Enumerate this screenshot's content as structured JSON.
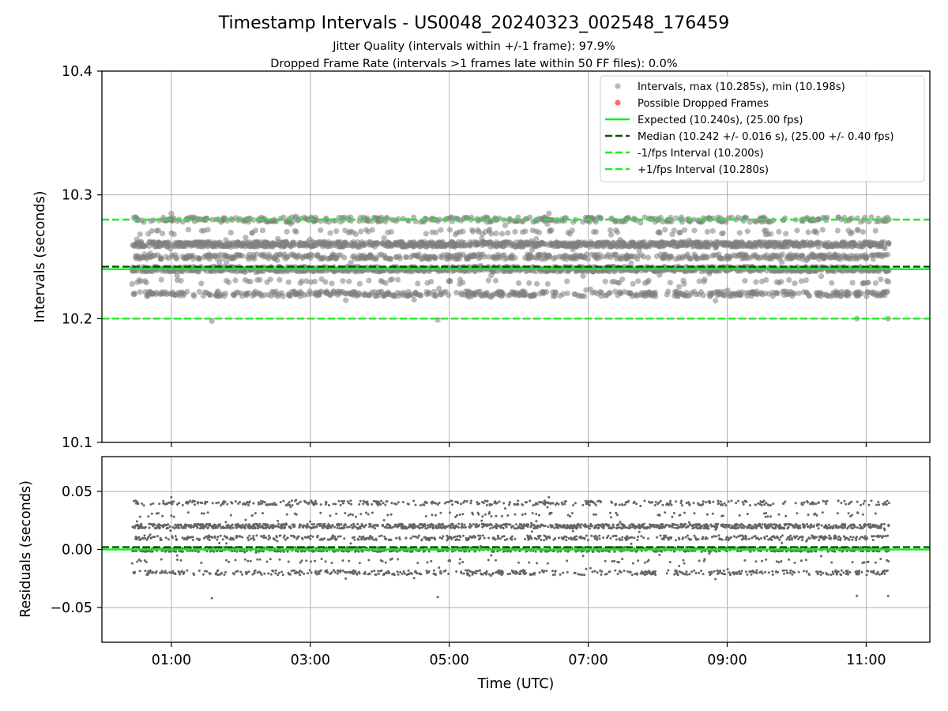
{
  "figure": {
    "title": "Timestamp Intervals - US0048_20240323_002548_176459",
    "subtitle_1": "Jitter Quality (intervals within +/-1 frame): 97.9%",
    "subtitle_2": "Dropped Frame Rate (intervals >1 frames late within 50 FF files): 0.0%",
    "xlabel": "Time (UTC)"
  },
  "colors": {
    "points": "#808080",
    "dropped": "#ff6a6a",
    "expected": "#11ee22",
    "median": "#005500",
    "fps_interval": "#22ee22",
    "grid": "#b0b0b0"
  },
  "chart_data": [
    {
      "type": "scatter",
      "name": "intervals",
      "ylabel": "Intervals (seconds)",
      "xlim": [
        "00:00",
        "11:55"
      ],
      "ylim": [
        10.1,
        10.4
      ],
      "yticks": [
        "10.1",
        "10.2",
        "10.3",
        "10.4"
      ],
      "grid": true,
      "legend_position": "upper right",
      "legend": [
        "Intervals, max (10.285s), min (10.198s)",
        "Possible Dropped Frames",
        "Expected (10.240s), (25.00 fps)",
        "Median (10.242 +/- 0.016 s), (25.00 +/- 0.40 fps)",
        "-1/fps Interval (10.200s)",
        "+1/fps Interval (10.280s)"
      ],
      "points_time_range": [
        "00:26",
        "11:20"
      ],
      "point_count_approx": 3900,
      "interval_max": 10.285,
      "interval_min": 10.198,
      "value_levels": [
        {
          "value": 10.22,
          "share": 0.13
        },
        {
          "value": 10.24,
          "share": 0.27
        },
        {
          "value": 10.25,
          "share": 0.14
        },
        {
          "value": 10.26,
          "share": 0.3
        },
        {
          "value": 10.28,
          "share": 0.11
        },
        {
          "value": 10.23,
          "share": 0.025
        },
        {
          "value": 10.27,
          "share": 0.025
        }
      ],
      "reference_lines": {
        "expected": 10.24,
        "median": 10.242,
        "minus_1fps": 10.2,
        "plus_1fps": 10.28
      },
      "dropped_frames": []
    },
    {
      "type": "scatter",
      "name": "residuals",
      "ylabel": "Residuals (seconds)",
      "ylim": [
        -0.08,
        0.08
      ],
      "yticks": [
        "0.05",
        "0.00",
        "−0.05"
      ],
      "ytick_values": [
        0.05,
        0.0,
        -0.05
      ],
      "grid": true,
      "residual_levels": [
        -0.02,
        0.0,
        0.01,
        0.02,
        0.04
      ],
      "residual_min": -0.042,
      "residual_max": 0.045,
      "reference_lines": {
        "zero": 0.0,
        "median_offset": 0.002
      },
      "xticks": [
        "01:00",
        "03:00",
        "05:00",
        "07:00",
        "09:00",
        "11:00"
      ],
      "xtick_minutes": [
        60,
        180,
        300,
        420,
        540,
        660
      ]
    }
  ]
}
